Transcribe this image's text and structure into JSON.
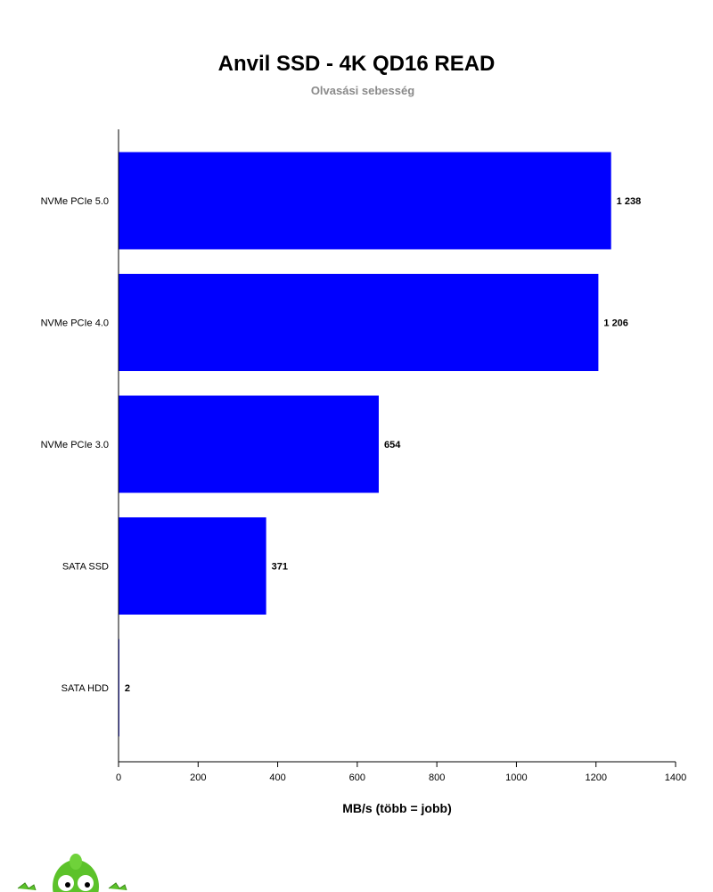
{
  "chart_data": {
    "type": "bar",
    "orientation": "horizontal",
    "title": "Anvil SSD - 4K QD16 READ",
    "subtitle": "Olvasási sebesség",
    "xlabel": "MB/s (több = jobb)",
    "ylabel": "",
    "categories": [
      "NVMe PCIe 5.0",
      "NVMe PCIe 4.0",
      "NVMe PCIe 3.0",
      "SATA SSD",
      "SATA HDD"
    ],
    "values": [
      1238,
      1206,
      654,
      371,
      2
    ],
    "value_labels": [
      "1 238",
      "1 206",
      "654",
      "371",
      "2"
    ],
    "xlim": [
      0,
      1400
    ],
    "x_ticks": [
      0,
      200,
      400,
      600,
      800,
      1000,
      1200,
      1400
    ],
    "grid": false,
    "legend": "none",
    "bar_color": "#0000ff"
  }
}
